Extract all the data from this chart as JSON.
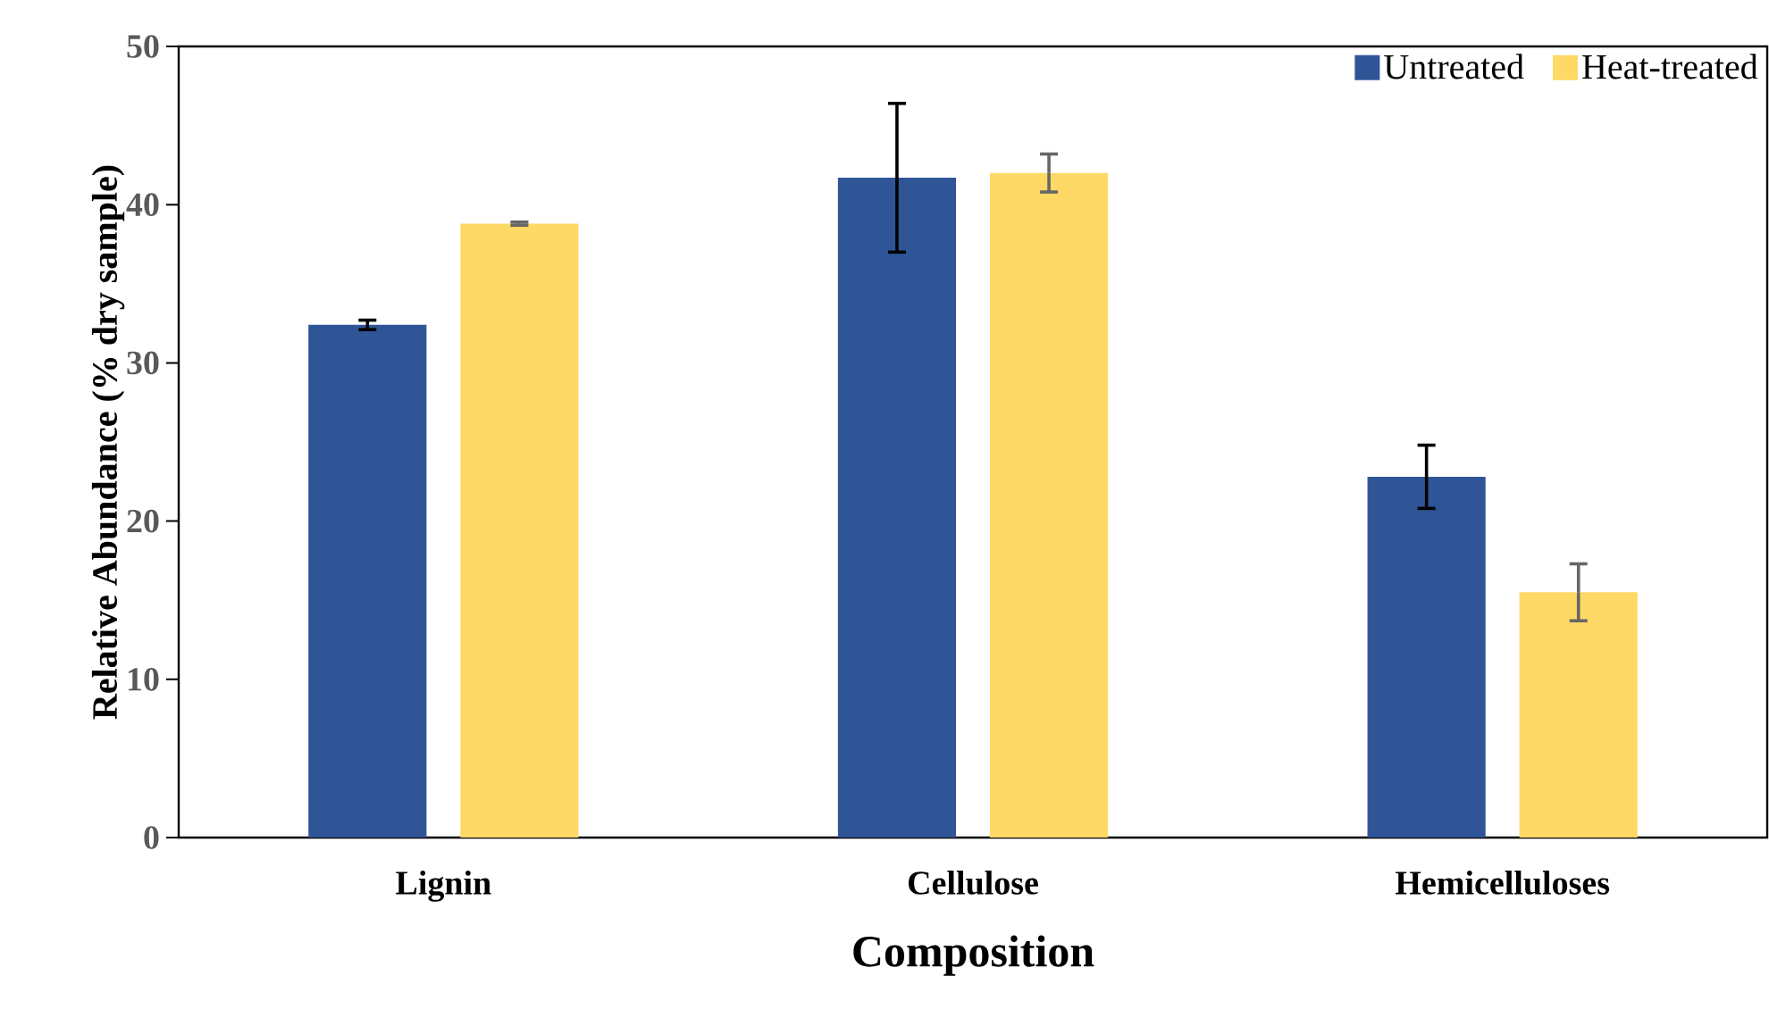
{
  "chart_data": {
    "type": "bar",
    "xlabel": "Composition",
    "ylabel": "Relative Abundance (% dry sample)",
    "categories": [
      "Lignin",
      "Cellulose",
      "Hemicelluloses"
    ],
    "series": [
      {
        "name": "Untreated",
        "color": "#2f5597",
        "values": [
          32.4,
          41.7,
          22.8
        ],
        "errors": [
          0.3,
          4.7,
          2.0
        ]
      },
      {
        "name": "Heat-treated",
        "color": "#ffd966",
        "values": [
          38.8,
          42.0,
          15.5
        ],
        "errors": [
          0.1,
          1.2,
          1.8
        ]
      }
    ],
    "ylim": [
      0,
      50
    ],
    "yticks": [
      0,
      10,
      20,
      30,
      40,
      50
    ],
    "grid": false,
    "legend": "top right"
  }
}
